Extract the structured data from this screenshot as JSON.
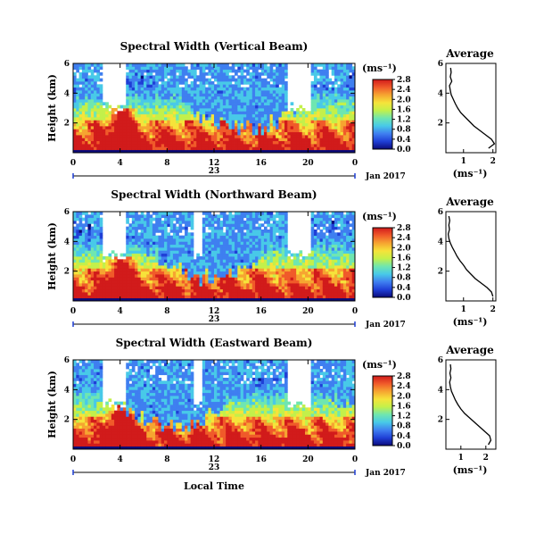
{
  "colormap": [
    "#0b0b7a",
    "#1f3fd6",
    "#3f7ff0",
    "#48c9e8",
    "#6fe6b0",
    "#c3f04a",
    "#f6e33a",
    "#f6a531",
    "#f05a2a",
    "#d11b1b"
  ],
  "x_ticks": [
    "0",
    "4",
    "8",
    "12",
    "16",
    "20",
    "0"
  ],
  "date_label": "23",
  "month_label": "Jan 2017",
  "x_axis_label": "Local Time",
  "height_label": "Height (km)",
  "unit_label": "(ms⁻¹)",
  "avg_title": "Average",
  "avg_xlabel": "(ms⁻¹)",
  "chart_data": [
    {
      "type": "heatmap",
      "title": "Spectral Width (Vertical Beam)",
      "ylabel": "Height (km)",
      "x_range_hours": [
        0,
        24
      ],
      "y_range_km": [
        0,
        6
      ],
      "y_ticks": [
        "2",
        "4",
        "6"
      ],
      "colorbar_ticks": [
        "0.0",
        "0.4",
        "0.8",
        "1.2",
        "1.6",
        "2.0",
        "2.4",
        "2.8"
      ],
      "colorbar_range": [
        0,
        2.8
      ],
      "profile": {
        "xlim": [
          0.4,
          2.1
        ],
        "x_ticks": [
          "1",
          "2"
        ],
        "y_ticks": [
          "2",
          "4",
          "6"
        ],
        "heights_km": [
          0.3,
          0.6,
          0.9,
          1.2,
          1.5,
          1.8,
          2.1,
          2.4,
          2.7,
          3.0,
          3.3,
          3.6,
          3.9,
          4.2,
          4.5,
          4.8,
          5.1,
          5.4,
          5.7
        ],
        "width": [
          1.85,
          2.05,
          1.95,
          1.75,
          1.55,
          1.35,
          1.2,
          1.05,
          0.9,
          0.8,
          0.72,
          0.65,
          0.58,
          0.55,
          0.52,
          0.6,
          0.55,
          0.58,
          0.56
        ]
      }
    },
    {
      "type": "heatmap",
      "title": "Spectral Width (Northward Beam)",
      "ylabel": "Height (km)",
      "x_range_hours": [
        0,
        24
      ],
      "y_range_km": [
        0,
        6
      ],
      "y_ticks": [
        "2",
        "4",
        "6"
      ],
      "colorbar_ticks": [
        "0.0",
        "0.4",
        "0.8",
        "1.2",
        "1.6",
        "2.0",
        "2.4",
        "2.8"
      ],
      "colorbar_range": [
        0,
        2.8
      ],
      "profile": {
        "xlim": [
          0.4,
          2.1
        ],
        "x_ticks": [
          "1",
          "2"
        ],
        "y_ticks": [
          "2",
          "4",
          "6"
        ],
        "heights_km": [
          0.3,
          0.6,
          0.9,
          1.2,
          1.5,
          1.8,
          2.1,
          2.4,
          2.7,
          3.0,
          3.3,
          3.6,
          3.9,
          4.2,
          4.5,
          4.8,
          5.1,
          5.4,
          5.7
        ],
        "width": [
          2.0,
          1.95,
          1.8,
          1.6,
          1.4,
          1.25,
          1.1,
          1.0,
          0.88,
          0.78,
          0.7,
          0.62,
          0.55,
          0.5,
          0.48,
          0.52,
          0.5,
          0.53,
          0.5
        ]
      }
    },
    {
      "type": "heatmap",
      "title": "Spectral Width (Eastward Beam)",
      "ylabel": "Height (km)",
      "x_range_hours": [
        0,
        24
      ],
      "y_range_km": [
        0,
        6
      ],
      "y_ticks": [
        "2",
        "4",
        "6"
      ],
      "colorbar_ticks": [
        "0.0",
        "0.4",
        "0.8",
        "1.2",
        "1.6",
        "2.0",
        "2.4",
        "2.8"
      ],
      "colorbar_range": [
        0,
        2.8
      ],
      "profile": {
        "xlim": [
          0.4,
          2.4
        ],
        "x_ticks": [
          "1",
          "2"
        ],
        "y_ticks": [
          "2",
          "4",
          "6"
        ],
        "heights_km": [
          0.3,
          0.6,
          0.9,
          1.2,
          1.5,
          1.8,
          2.1,
          2.4,
          2.7,
          3.0,
          3.3,
          3.6,
          3.9,
          4.2,
          4.5,
          4.8,
          5.1,
          5.4,
          5.7
        ],
        "width": [
          2.1,
          2.2,
          2.15,
          1.95,
          1.75,
          1.55,
          1.35,
          1.15,
          1.0,
          0.88,
          0.78,
          0.7,
          0.62,
          0.58,
          0.55,
          0.6,
          0.56,
          0.6,
          0.58
        ]
      }
    }
  ]
}
